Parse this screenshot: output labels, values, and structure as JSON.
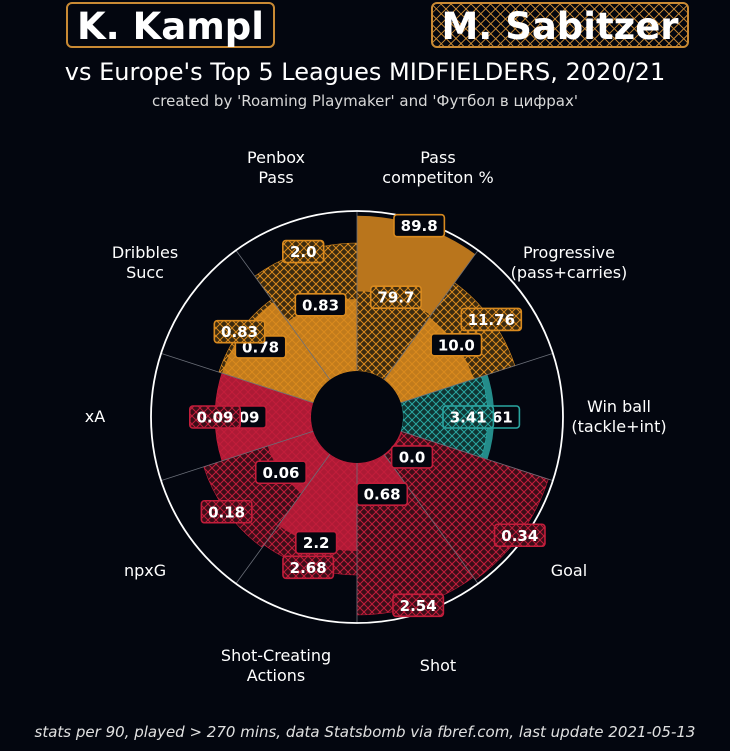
{
  "header": {
    "player_left": "K. Kampl",
    "player_right": "M. Sabitzer",
    "title": "vs Europe's Top 5 Leagues MIDFIELDERS, 2020/21",
    "subtitle": "created by 'Roaming Playmaker' and 'Футбол в цифрах'"
  },
  "footer": "stats per 90, played > 270 mins, data Statsbomb via fbref.com, last update 2021-05-13",
  "colors": {
    "background": "#03060f",
    "orange": "#d98a1f",
    "teal": "#2aa5a0",
    "red": "#c21d3b",
    "circle": "#ffffff"
  },
  "chart_data": {
    "type": "radial-bar",
    "scale": "percentile",
    "range": [
      0,
      100
    ],
    "series": [
      {
        "name": "K. Kampl",
        "style": "solid"
      },
      {
        "name": "M. Sabitzer",
        "style": "hatched"
      }
    ],
    "categories": [
      {
        "label": "Pass\ncompetiton %",
        "color": "orange",
        "kampl_value": "89.8",
        "sabitzer_value": "79.7",
        "kampl_pct": 97,
        "sabitzer_pct": 50
      },
      {
        "label": "Progressive\n(pass+carries)",
        "color": "orange",
        "kampl_value": "10.0",
        "sabitzer_value": "11.76",
        "kampl_pct": 48,
        "sabitzer_pct": 75
      },
      {
        "label": "Win ball\n(tackle+int)",
        "color": "teal",
        "kampl_value": "3.61",
        "sabitzer_value": "3.41",
        "kampl_pct": 57,
        "sabitzer_pct": 53
      },
      {
        "label": "Goal",
        "color": "red",
        "kampl_value": "0.0",
        "sabitzer_value": "0.34",
        "kampl_pct": 1,
        "sabitzer_pct": 97
      },
      {
        "label": "Shot",
        "color": "red",
        "kampl_value": "0.68",
        "sabitzer_value": "2.54",
        "kampl_pct": 22,
        "sabitzer_pct": 95
      },
      {
        "label": "Shot-Creating\nActions",
        "color": "red",
        "kampl_value": "2.2",
        "sabitzer_value": "2.68",
        "kampl_pct": 55,
        "sabitzer_pct": 70
      },
      {
        "label": "npxG",
        "color": "red",
        "kampl_value": "0.06",
        "sabitzer_value": "0.18",
        "kampl_pct": 30,
        "sabitzer_pct": 72
      },
      {
        "label": "xA",
        "color": "red",
        "kampl_value": "0.09",
        "sabitzer_value": "0.09",
        "kampl_pct": 60,
        "sabitzer_pct": 60
      },
      {
        "label": "Dribbles\nSucc",
        "color": "orange",
        "kampl_value": "0.78",
        "sabitzer_value": "0.83",
        "kampl_pct": 60,
        "sabitzer_pct": 62
      },
      {
        "label": "Penbox\nPass",
        "color": "orange",
        "kampl_value": "0.83",
        "sabitzer_value": "2.0",
        "kampl_pct": 45,
        "sabitzer_pct": 80
      }
    ]
  }
}
